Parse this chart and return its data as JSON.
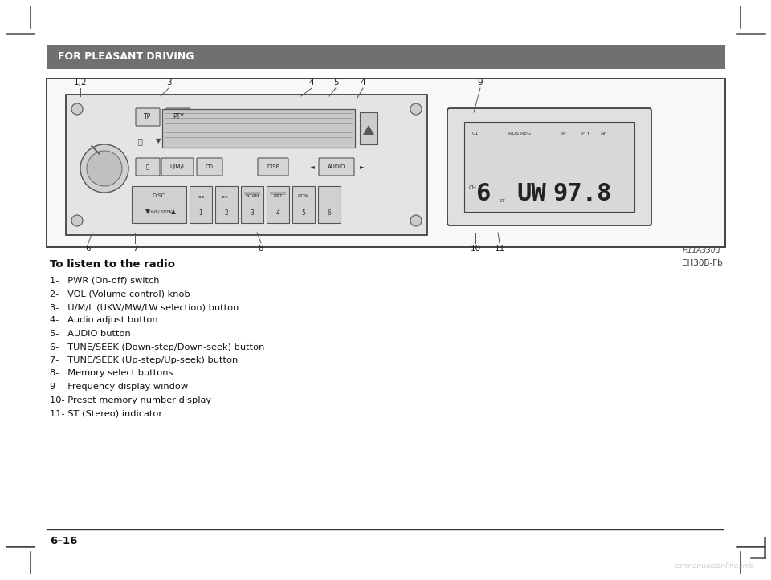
{
  "background_color": "#ffffff",
  "header_bar_color": "#707070",
  "header_text": "FOR PLEASANT DRIVING",
  "header_text_color": "#ffffff",
  "header_fontsize": 9,
  "page_number": "6–16",
  "ref_code": "EH30B-Fb",
  "image_ref": "H11A330d",
  "section_title": "To listen to the radio",
  "items": [
    "1-   PWR (On-off) switch",
    "2-   VOL (Volume control) knob",
    "3-   U/M/L (UKW/MW/LW selection) button",
    "4-   Audio adjust button",
    "5-   AUDIO button",
    "6-   TUNE/SEEK (Down-step/Down-seek) button",
    "7-   TUNE/SEEK (Up-step/Up-seek) button",
    "8-   Memory select buttons",
    "9-   Frequency display window",
    "10- Preset memory number display",
    "11- ST (Stereo) indicator"
  ]
}
